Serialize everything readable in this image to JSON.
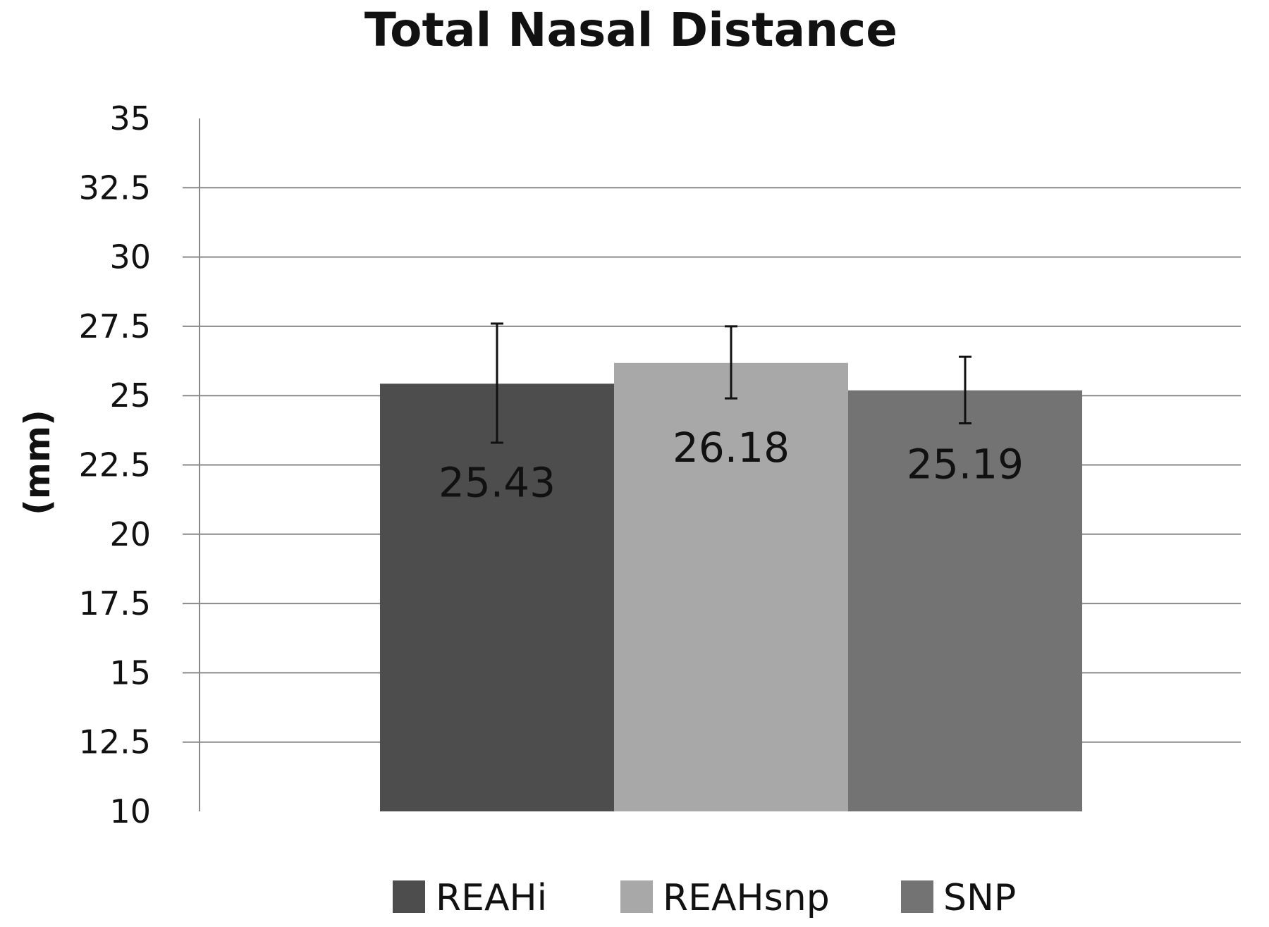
{
  "chart_data": {
    "type": "bar",
    "title": "Total Nasal Distance",
    "xlabel": "",
    "ylabel": "(mm)",
    "ylim": [
      10,
      35
    ],
    "yticks": [
      10,
      12.5,
      15,
      17.5,
      20,
      22.5,
      25,
      27.5,
      30,
      32.5,
      35
    ],
    "ytick_labels": [
      "10",
      "12.5",
      "15",
      "17.5",
      "20",
      "22.5",
      "25",
      "27.5",
      "30",
      "32.5",
      "35"
    ],
    "grid": true,
    "legend": "bottom",
    "series": [
      {
        "name": "REAHi",
        "value": 25.43,
        "label": "25.43",
        "error_low": 23.3,
        "error_high": 27.6,
        "color": "#4d4d4d"
      },
      {
        "name": "REAHsnp",
        "value": 26.18,
        "label": "26.18",
        "error_low": 24.9,
        "error_high": 27.5,
        "color": "#a8a8a8"
      },
      {
        "name": "SNP",
        "value": 25.19,
        "label": "25.19",
        "error_low": 24.0,
        "error_high": 26.4,
        "color": "#737373"
      }
    ]
  }
}
